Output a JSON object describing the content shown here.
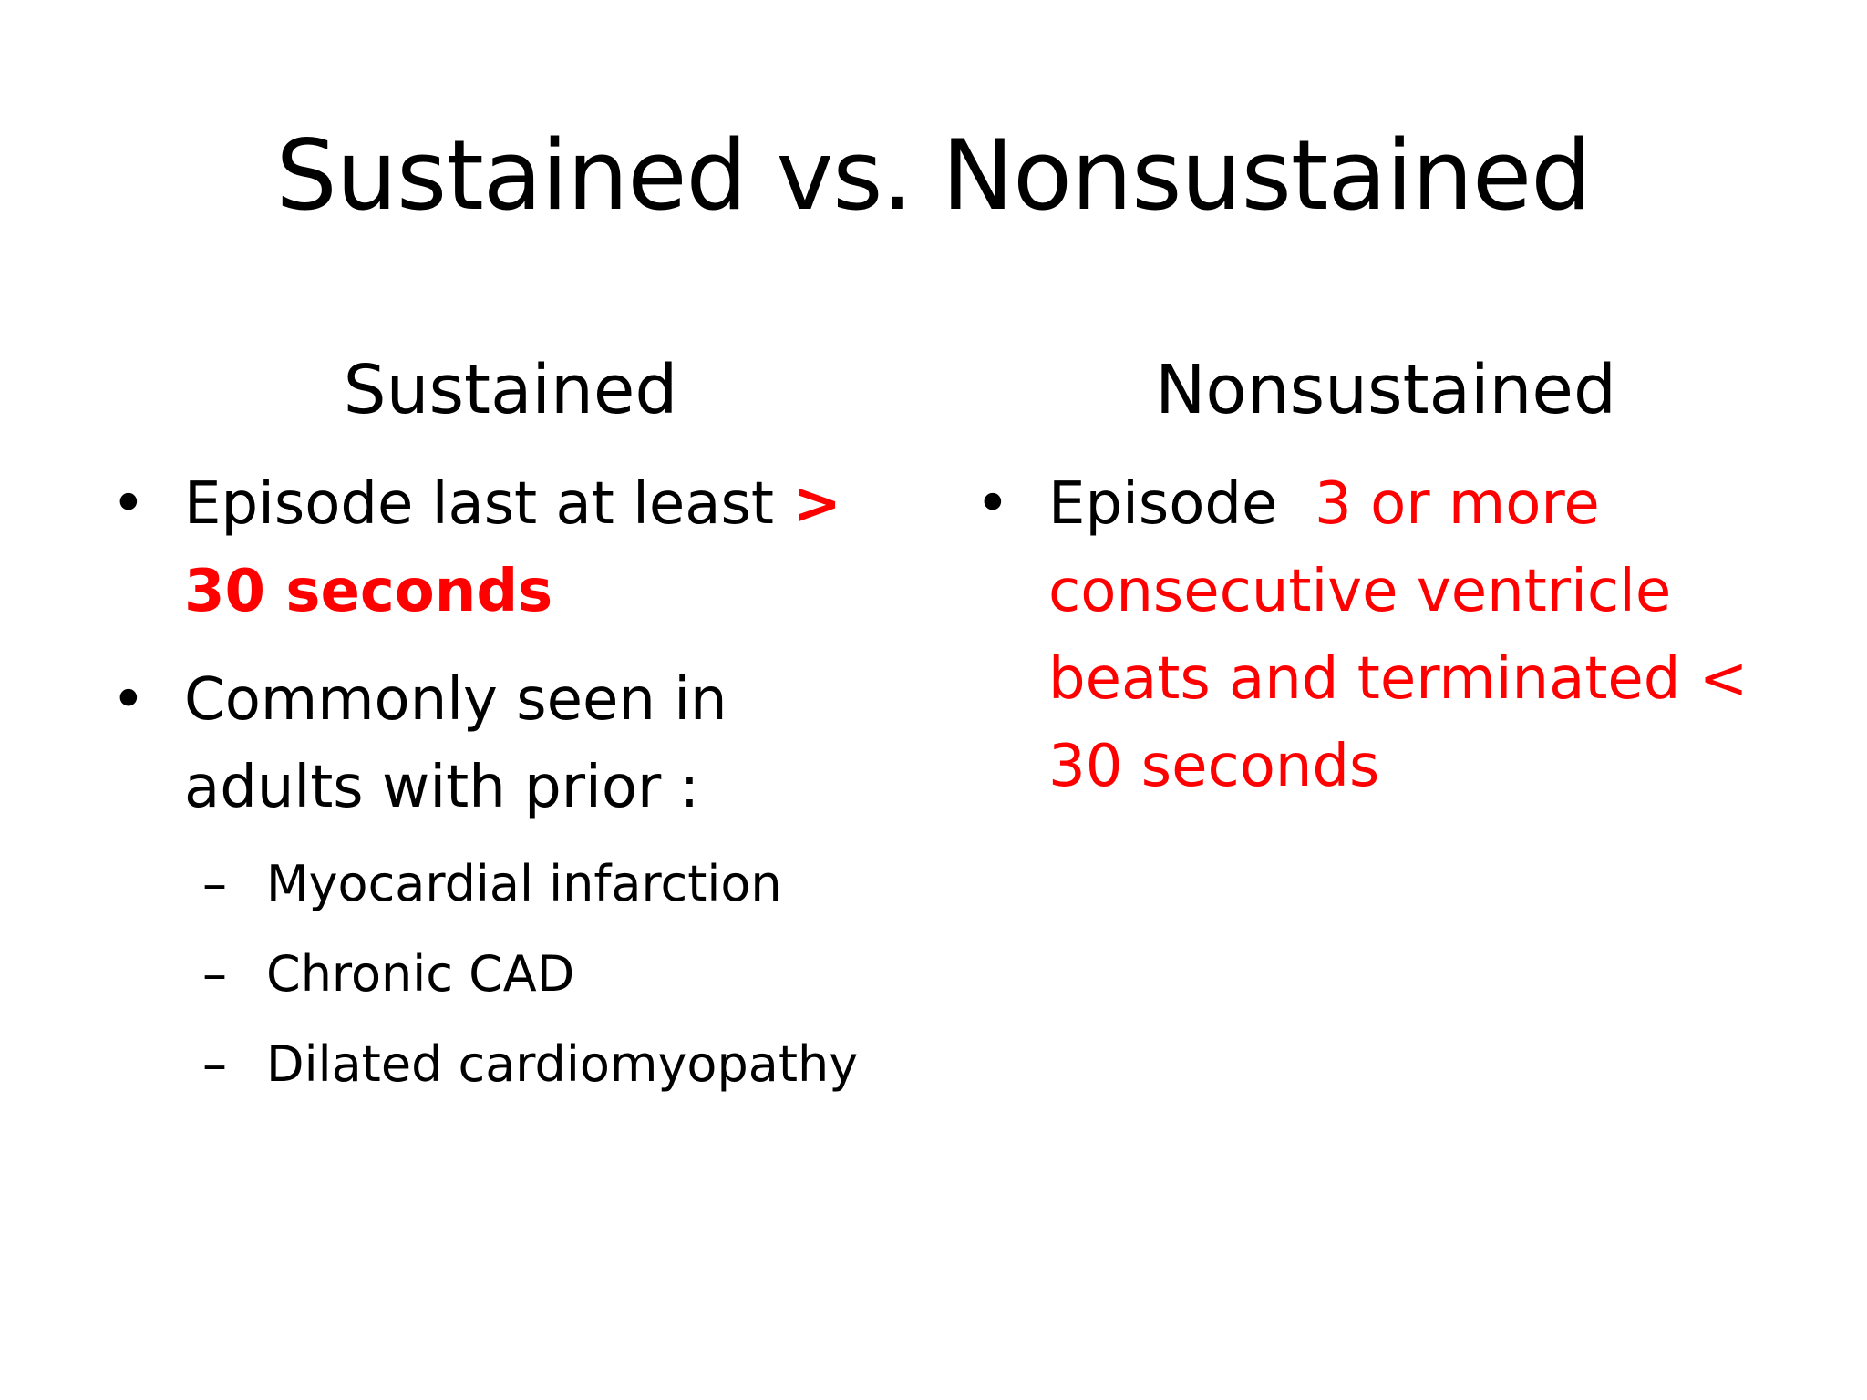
{
  "slide": {
    "title": "Sustained vs. Nonsustained",
    "left": {
      "heading": "Sustained",
      "bullet1": {
        "text": "Episode last at least ",
        "emphasis_line1": ">",
        "emphasis_line2": "30 seconds"
      },
      "bullet2": {
        "line1": "Commonly seen in",
        "line2": "adults with prior :"
      },
      "subitems": [
        "Myocardial infarction",
        "Chronic CAD",
        "Dilated cardiomyopathy"
      ]
    },
    "right": {
      "heading": "Nonsustained",
      "bullet1": {
        "text": "Episode  ",
        "emphasis_line1": "3 or more",
        "line2": "consecutive ventricle",
        "line3": "beats and terminated <",
        "line4": "30 seconds"
      }
    },
    "bullet_symbol": "•",
    "dash_symbol": "–",
    "colors": {
      "text": "#000000",
      "emphasis": "#ff0000",
      "background": "#ffffff"
    }
  }
}
